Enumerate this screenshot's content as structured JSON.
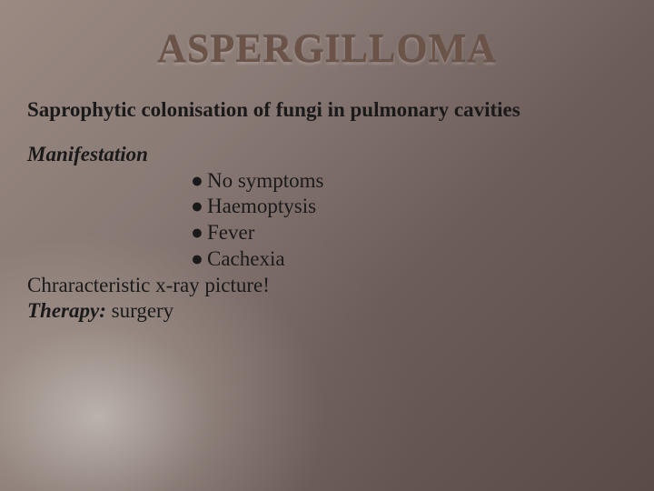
{
  "title": "ASPERGILLOMA",
  "subtitle": "Saprophytic colonisation of fungi in pulmonary cavities",
  "manifestation_label": "Manifestation",
  "bullets": {
    "b0": "No symptoms",
    "b1": "Haemoptysis",
    "b2": "Fever",
    "b3": "Cachexia"
  },
  "xray": "Chraracteristic x-ray picture!",
  "therapy_label": "Therapy:",
  "therapy_value": "surgery",
  "colors": {
    "title_color": "#6b5348",
    "text_color": "#1a1a1a"
  },
  "typography": {
    "title_fontsize": 44,
    "body_fontsize": 23
  }
}
